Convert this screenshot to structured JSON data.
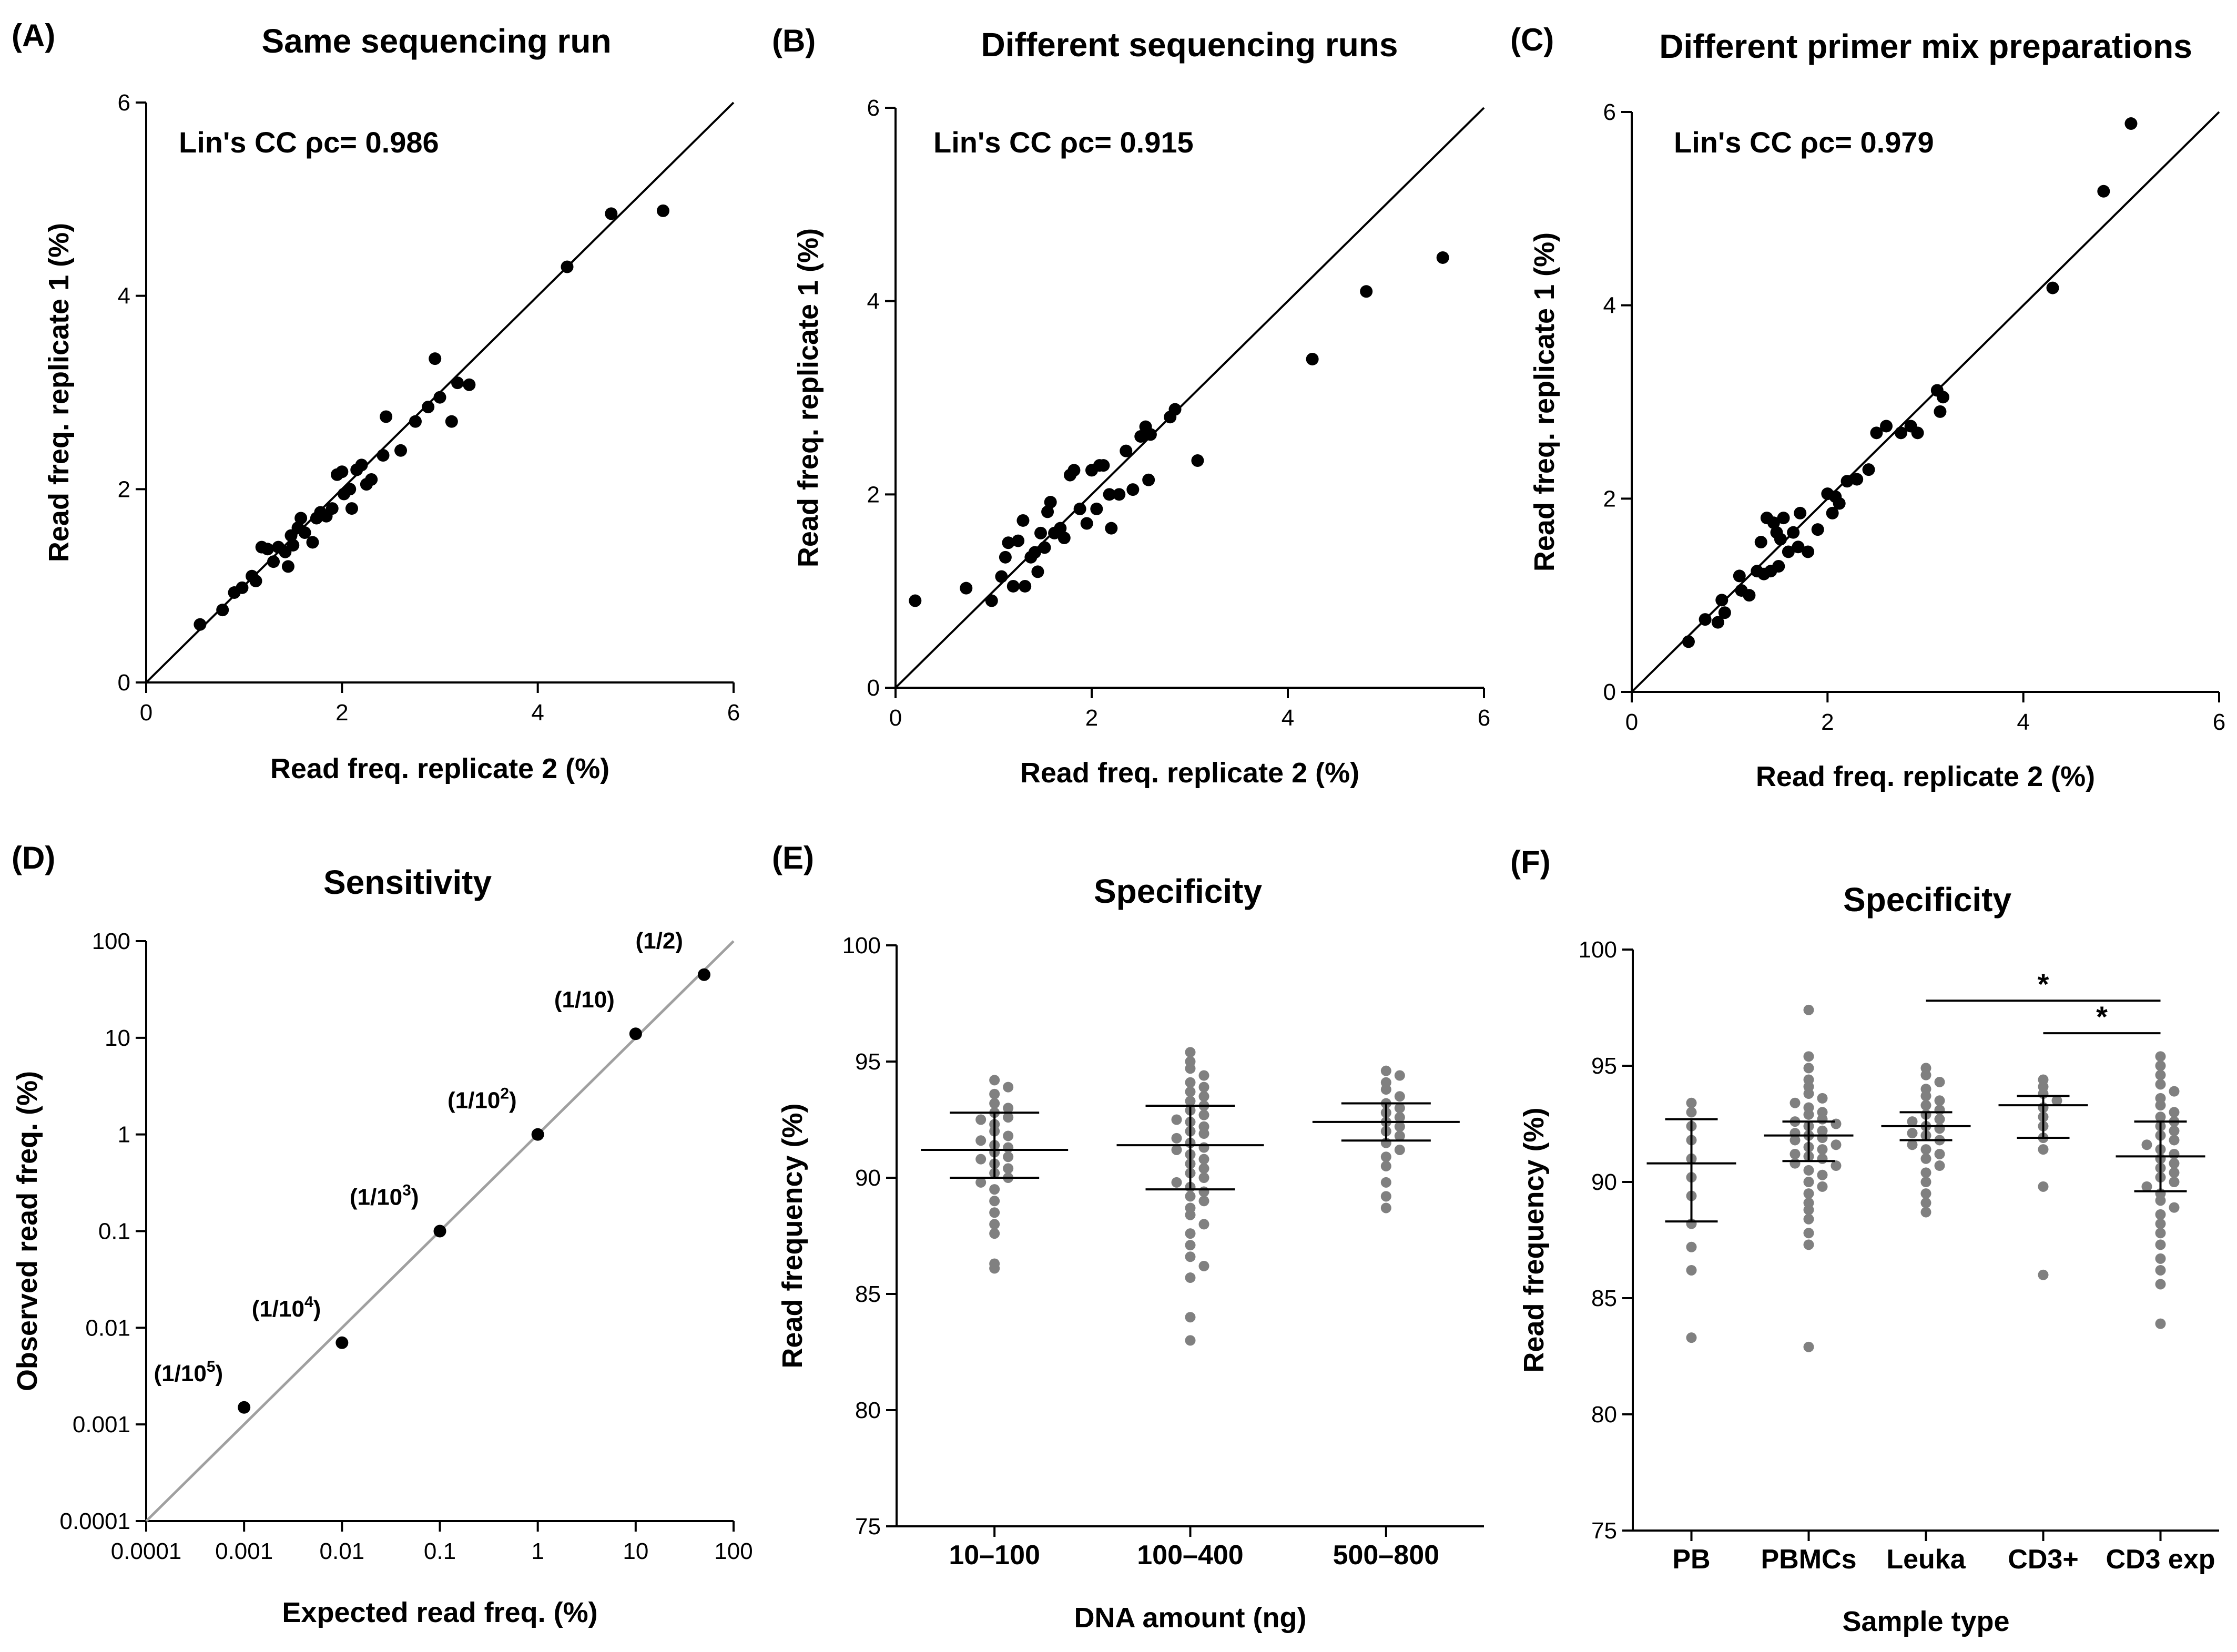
{
  "chart_data": [
    {
      "panel": "(A)",
      "type": "scatter",
      "title": "Same sequencing run",
      "xlabel": "Read freq. replicate 2 (%)",
      "ylabel": "Read freq. replicate 1 (%)",
      "xlim": [
        0,
        6
      ],
      "ylim": [
        0,
        6
      ],
      "xticks": [
        "0",
        "2",
        "4",
        "6"
      ],
      "yticks": [
        "0",
        "2",
        "4",
        "6"
      ],
      "annotation": "Lin's CC ρc= 0.986",
      "identity_line": true,
      "points": [
        [
          0.55,
          0.6
        ],
        [
          0.78,
          0.75
        ],
        [
          0.9,
          0.93
        ],
        [
          0.98,
          0.98
        ],
        [
          1.08,
          1.1
        ],
        [
          1.12,
          1.05
        ],
        [
          1.18,
          1.4
        ],
        [
          1.24,
          1.38
        ],
        [
          1.3,
          1.25
        ],
        [
          1.35,
          1.4
        ],
        [
          1.42,
          1.35
        ],
        [
          1.45,
          1.2
        ],
        [
          1.48,
          1.52
        ],
        [
          1.5,
          1.42
        ],
        [
          1.55,
          1.6
        ],
        [
          1.58,
          1.7
        ],
        [
          1.62,
          1.55
        ],
        [
          1.7,
          1.45
        ],
        [
          1.74,
          1.7
        ],
        [
          1.78,
          1.76
        ],
        [
          1.84,
          1.72
        ],
        [
          1.9,
          1.8
        ],
        [
          1.95,
          2.15
        ],
        [
          2.0,
          2.18
        ],
        [
          2.02,
          1.95
        ],
        [
          2.08,
          2.0
        ],
        [
          2.1,
          1.8
        ],
        [
          2.15,
          2.2
        ],
        [
          2.2,
          2.25
        ],
        [
          2.25,
          2.05
        ],
        [
          2.3,
          2.1
        ],
        [
          2.42,
          2.35
        ],
        [
          2.45,
          2.75
        ],
        [
          2.6,
          2.4
        ],
        [
          2.75,
          2.7
        ],
        [
          2.88,
          2.85
        ],
        [
          2.95,
          3.35
        ],
        [
          3.0,
          2.95
        ],
        [
          3.12,
          2.7
        ],
        [
          3.18,
          3.1
        ],
        [
          3.3,
          3.08
        ],
        [
          4.3,
          4.3
        ],
        [
          4.75,
          4.85
        ],
        [
          5.28,
          4.88
        ]
      ]
    },
    {
      "panel": "(B)",
      "type": "scatter",
      "title": "Different sequencing runs",
      "xlabel": "Read freq. replicate 2 (%)",
      "ylabel": "Read freq. replicate 1 (%)",
      "xlim": [
        0,
        6
      ],
      "ylim": [
        0,
        6
      ],
      "xticks": [
        "0",
        "2",
        "4",
        "6"
      ],
      "yticks": [
        "0",
        "2",
        "4",
        "6"
      ],
      "annotation": "Lin's CC ρc= 0.915",
      "identity_line": true,
      "points": [
        [
          0.2,
          0.9
        ],
        [
          0.72,
          1.03
        ],
        [
          0.98,
          0.9
        ],
        [
          1.08,
          1.15
        ],
        [
          1.12,
          1.35
        ],
        [
          1.15,
          1.5
        ],
        [
          1.2,
          1.05
        ],
        [
          1.25,
          1.52
        ],
        [
          1.3,
          1.73
        ],
        [
          1.32,
          1.05
        ],
        [
          1.38,
          1.35
        ],
        [
          1.42,
          1.4
        ],
        [
          1.45,
          1.2
        ],
        [
          1.48,
          1.6
        ],
        [
          1.52,
          1.45
        ],
        [
          1.55,
          1.82
        ],
        [
          1.58,
          1.92
        ],
        [
          1.62,
          1.6
        ],
        [
          1.68,
          1.65
        ],
        [
          1.72,
          1.55
        ],
        [
          1.78,
          2.2
        ],
        [
          1.82,
          2.25
        ],
        [
          1.88,
          1.85
        ],
        [
          1.95,
          1.7
        ],
        [
          2.0,
          2.25
        ],
        [
          2.05,
          1.85
        ],
        [
          2.08,
          2.3
        ],
        [
          2.12,
          2.3
        ],
        [
          2.18,
          2.0
        ],
        [
          2.2,
          1.65
        ],
        [
          2.28,
          2.0
        ],
        [
          2.35,
          2.45
        ],
        [
          2.42,
          2.05
        ],
        [
          2.5,
          2.6
        ],
        [
          2.55,
          2.7
        ],
        [
          2.58,
          2.15
        ],
        [
          2.6,
          2.62
        ],
        [
          2.8,
          2.8
        ],
        [
          2.85,
          2.88
        ],
        [
          3.08,
          2.35
        ],
        [
          4.25,
          3.4
        ],
        [
          4.8,
          4.1
        ],
        [
          5.58,
          4.45
        ]
      ]
    },
    {
      "panel": "(C)",
      "type": "scatter",
      "title": "Different primer mix preparations",
      "xlabel": "Read freq. replicate 2 (%)",
      "ylabel": "Read freq. replicate 1 (%)",
      "xlim": [
        0,
        6
      ],
      "ylim": [
        0,
        6
      ],
      "xticks": [
        "0",
        "2",
        "4",
        "6"
      ],
      "yticks": [
        "0",
        "2",
        "4",
        "6"
      ],
      "annotation": "Lin's CC ρc= 0.979",
      "identity_line": true,
      "points": [
        [
          0.58,
          0.52
        ],
        [
          0.75,
          0.75
        ],
        [
          0.88,
          0.72
        ],
        [
          0.92,
          0.95
        ],
        [
          0.95,
          0.82
        ],
        [
          1.1,
          1.2
        ],
        [
          1.12,
          1.05
        ],
        [
          1.2,
          1.0
        ],
        [
          1.28,
          1.25
        ],
        [
          1.32,
          1.55
        ],
        [
          1.35,
          1.22
        ],
        [
          1.38,
          1.8
        ],
        [
          1.42,
          1.25
        ],
        [
          1.45,
          1.75
        ],
        [
          1.48,
          1.65
        ],
        [
          1.5,
          1.3
        ],
        [
          1.52,
          1.58
        ],
        [
          1.55,
          1.8
        ],
        [
          1.6,
          1.45
        ],
        [
          1.65,
          1.65
        ],
        [
          1.7,
          1.5
        ],
        [
          1.72,
          1.85
        ],
        [
          1.8,
          1.45
        ],
        [
          1.9,
          1.68
        ],
        [
          2.0,
          2.05
        ],
        [
          2.05,
          1.85
        ],
        [
          2.08,
          2.02
        ],
        [
          2.12,
          1.95
        ],
        [
          2.2,
          2.18
        ],
        [
          2.3,
          2.2
        ],
        [
          2.42,
          2.3
        ],
        [
          2.5,
          2.68
        ],
        [
          2.6,
          2.75
        ],
        [
          2.75,
          2.68
        ],
        [
          2.85,
          2.75
        ],
        [
          2.92,
          2.68
        ],
        [
          3.12,
          3.12
        ],
        [
          3.15,
          2.9
        ],
        [
          3.18,
          3.05
        ],
        [
          4.3,
          4.18
        ],
        [
          4.82,
          5.18
        ],
        [
          5.1,
          5.88
        ]
      ]
    },
    {
      "panel": "(D)",
      "type": "scatter",
      "title": "Sensitivity",
      "xlabel": "Expected read freq. (%)",
      "ylabel": "Observed read freq. (%)",
      "xscale": "log",
      "yscale": "log",
      "xlim": [
        0.0001,
        100
      ],
      "ylim": [
        0.0001,
        100
      ],
      "xticks": [
        "0.0001",
        "0.001",
        "0.01",
        "0.1",
        "1",
        "10",
        "100"
      ],
      "yticks": [
        "0.0001",
        "0.001",
        "0.01",
        "0.1",
        "1",
        "10",
        "100"
      ],
      "identity_line": true,
      "points": [
        {
          "x": 0.001,
          "y": 0.0015,
          "label": "(1/10",
          "sup": "5",
          "close": ")"
        },
        {
          "x": 0.01,
          "y": 0.007,
          "label": "(1/10",
          "sup": "4",
          "close": ")"
        },
        {
          "x": 0.1,
          "y": 0.1,
          "label": "(1/10",
          "sup": "3",
          "close": ")"
        },
        {
          "x": 1,
          "y": 1,
          "label": "(1/10",
          "sup": "2",
          "close": ")"
        },
        {
          "x": 10,
          "y": 11,
          "label": "(1/10)",
          "sup": "",
          "close": ""
        },
        {
          "x": 50,
          "y": 45,
          "label": "(1/2)",
          "sup": "",
          "close": ""
        }
      ]
    },
    {
      "panel": "(E)",
      "type": "scatter",
      "title": "Specificity",
      "xlabel": "DNA amount (ng)",
      "ylabel": "Read frequency (%)",
      "ylim": [
        75,
        100
      ],
      "yticks": [
        "75",
        "80",
        "85",
        "90",
        "95",
        "100"
      ],
      "categories": [
        "10–100",
        "100–400",
        "500–800"
      ],
      "groups": [
        {
          "mean": 91.2,
          "err": [
            90.0,
            92.8
          ],
          "values": [
            94.2,
            93.9,
            93.6,
            93.2,
            93.0,
            92.8,
            92.6,
            92.5,
            92.3,
            92.0,
            91.8,
            91.6,
            91.4,
            91.3,
            91.1,
            90.9,
            90.8,
            90.6,
            90.4,
            90.2,
            90.0,
            89.8,
            89.5,
            89.0,
            88.5,
            88.0,
            87.6,
            86.3,
            86.1
          ]
        },
        {
          "mean": 91.4,
          "err": [
            89.5,
            93.1
          ],
          "values": [
            95.4,
            95.0,
            94.7,
            94.4,
            94.1,
            93.9,
            93.7,
            93.5,
            93.3,
            93.1,
            92.9,
            92.7,
            92.5,
            92.4,
            92.2,
            92.0,
            91.9,
            91.7,
            91.5,
            91.3,
            91.2,
            91.0,
            90.8,
            90.6,
            90.4,
            90.2,
            90.0,
            89.8,
            89.6,
            89.4,
            89.2,
            89.0,
            88.7,
            88.4,
            88.0,
            87.6,
            87.1,
            86.6,
            86.2,
            85.7,
            84.0,
            83.0
          ]
        },
        {
          "mean": 92.4,
          "err": [
            91.6,
            93.2
          ],
          "values": [
            94.6,
            94.4,
            94.1,
            93.8,
            93.5,
            93.2,
            93.0,
            92.8,
            92.6,
            92.4,
            92.2,
            92.0,
            91.8,
            91.5,
            91.2,
            90.9,
            90.5,
            89.8,
            89.2,
            88.7
          ]
        }
      ]
    },
    {
      "panel": "(F)",
      "type": "scatter",
      "title": "Specificity",
      "xlabel": "Sample type",
      "ylabel": "Read frequency (%)",
      "ylim": [
        75,
        100
      ],
      "yticks": [
        "75",
        "80",
        "85",
        "90",
        "95",
        "100"
      ],
      "categories": [
        "PB",
        "PBMCs",
        "Leuka",
        "CD3+",
        "CD3 exp"
      ],
      "groups": [
        {
          "mean": 90.8,
          "err": [
            88.3,
            92.7
          ],
          "values": [
            93.4,
            93.0,
            92.4,
            91.8,
            91.0,
            90.2,
            89.4,
            88.2,
            87.2,
            86.2,
            83.3
          ]
        },
        {
          "mean": 92.0,
          "err": [
            90.9,
            92.6
          ],
          "values": [
            97.4,
            95.4,
            94.9,
            94.4,
            94.1,
            93.8,
            93.6,
            93.4,
            93.2,
            93.0,
            92.9,
            92.7,
            92.6,
            92.5,
            92.4,
            92.2,
            92.1,
            92.0,
            91.9,
            91.8,
            91.6,
            91.5,
            91.4,
            91.2,
            91.1,
            91.0,
            90.8,
            90.7,
            90.5,
            90.3,
            90.0,
            89.8,
            89.5,
            89.1,
            88.8,
            88.4,
            87.8,
            87.3,
            82.9
          ]
        },
        {
          "mean": 92.4,
          "err": [
            91.8,
            93.0
          ],
          "values": [
            94.9,
            94.6,
            94.3,
            94.0,
            93.7,
            93.5,
            93.3,
            93.1,
            92.9,
            92.7,
            92.6,
            92.4,
            92.3,
            92.1,
            92.0,
            91.8,
            91.6,
            91.4,
            91.2,
            91.0,
            90.7,
            90.4,
            90.0,
            89.5,
            89.1,
            88.7
          ]
        },
        {
          "mean": 93.3,
          "err": [
            91.9,
            93.7
          ],
          "values": [
            94.4,
            94.1,
            93.8,
            93.5,
            93.2,
            92.8,
            92.4,
            91.9,
            91.4,
            89.8,
            86.0
          ]
        },
        {
          "mean": 91.1,
          "err": [
            89.6,
            92.6
          ],
          "values": [
            95.4,
            95.0,
            94.6,
            94.2,
            93.9,
            93.6,
            93.3,
            93.0,
            92.8,
            92.6,
            92.4,
            92.2,
            92.0,
            91.8,
            91.6,
            91.4,
            91.2,
            91.0,
            90.8,
            90.6,
            90.4,
            90.2,
            90.0,
            89.8,
            89.5,
            89.2,
            88.9,
            88.6,
            88.2,
            87.8,
            87.3,
            86.7,
            86.2,
            85.6,
            83.9
          ]
        }
      ],
      "significance": [
        {
          "from": "Leuka",
          "to": "CD3 exp",
          "label": "*"
        },
        {
          "from": "CD3+",
          "to": "CD3 exp",
          "label": "*"
        }
      ]
    }
  ]
}
